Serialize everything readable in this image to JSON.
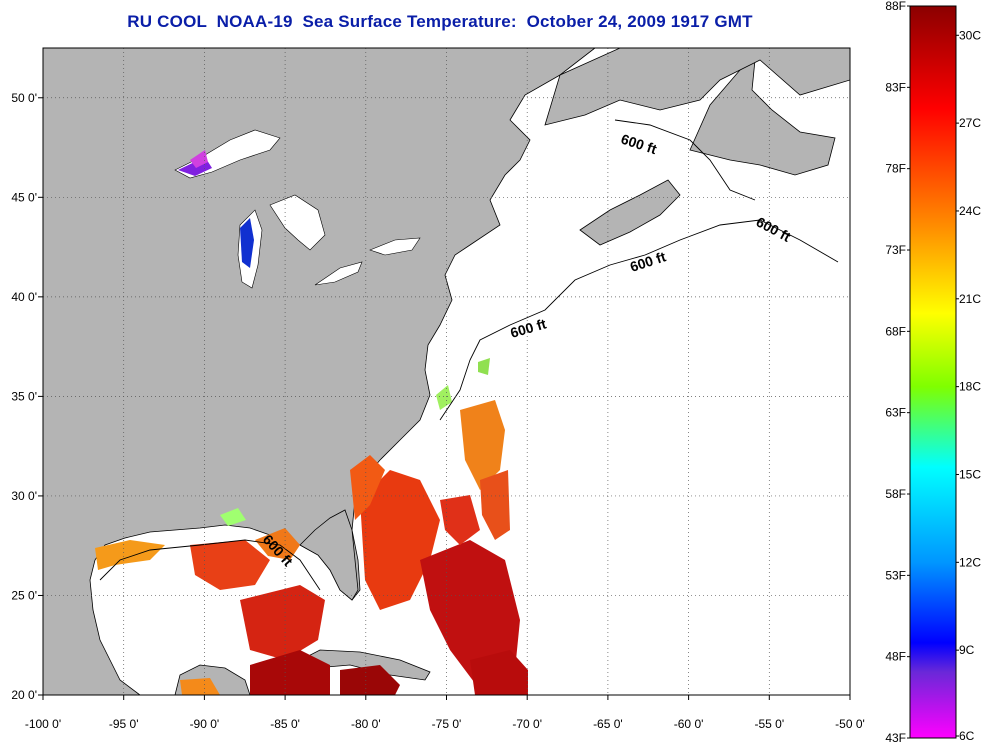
{
  "title": "RU COOL  NOAA-19  Sea Surface Temperature:  October 24, 2009 1917 GMT",
  "map": {
    "lon_ticks": [
      "-100 0'",
      "-95 0'",
      "-90 0'",
      "-85 0'",
      "-80 0'",
      "-75 0'",
      "-70 0'",
      "-65 0'",
      "-60 0'",
      "-55 0'",
      "-50 0'"
    ],
    "lat_ticks": [
      "50 0'",
      "45 0'",
      "40 0'",
      "35 0'",
      "30 0'",
      "25 0'",
      "20 0'"
    ],
    "lon_range": [
      -100,
      -50
    ],
    "lat_range": [
      20,
      52.5
    ],
    "land_color": "#b4b4b4",
    "ocean_color": "#ffffff",
    "contour_labels": [
      "600 ft",
      "600 ft",
      "600 ft",
      "600 ft",
      "600 ft"
    ]
  },
  "colorbar": {
    "fahrenheit_labels": [
      "88F",
      "83F",
      "78F",
      "73F",
      "68F",
      "63F",
      "58F",
      "53F",
      "48F",
      "43F"
    ],
    "celsius_labels": [
      "30C",
      "27C",
      "24C",
      "21C",
      "18C",
      "15C",
      "12C",
      "9C",
      "6C"
    ],
    "range_celsius": [
      6,
      31
    ],
    "gradient_colors": [
      "#8b0000",
      "#ff0000",
      "#ff8c00",
      "#ffff00",
      "#7fff00",
      "#00ffff",
      "#00bfff",
      "#0000ff",
      "#8a2be2",
      "#ff00ff"
    ]
  }
}
